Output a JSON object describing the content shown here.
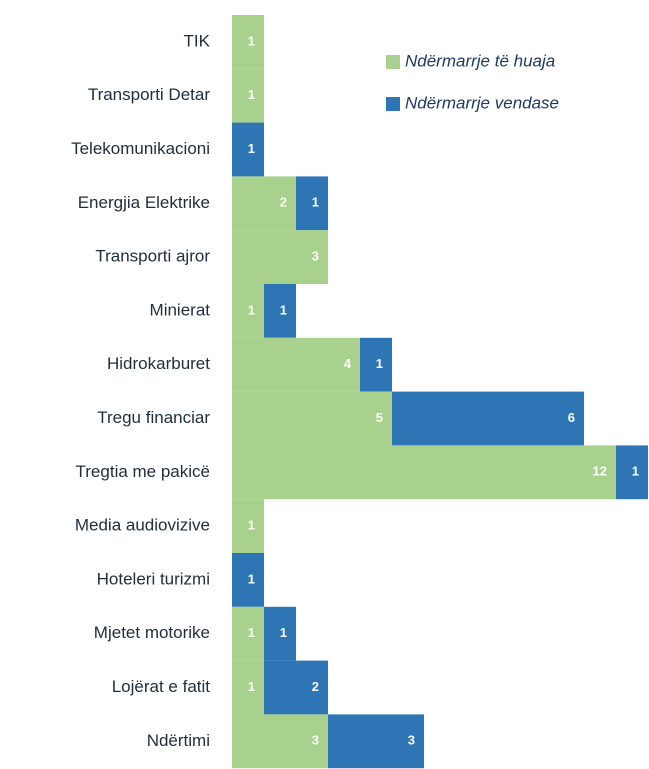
{
  "chart_data": {
    "type": "stacked-barh",
    "categories": [
      "TIK",
      "Transporti Detar",
      "Telekomunikacioni",
      "Energjia Elektrike",
      "Transporti ajror",
      "Minierat",
      "Hidrokarburet",
      "Tregu financiar",
      "Tregtia me pakicë",
      "Media audiovizive",
      "Hoteleri turizmi",
      "Mjetet motorike",
      "Lojërat e fatit",
      "Ndërtimi"
    ],
    "series": [
      {
        "name": "Ndërmarrje të huaja",
        "color": "#a9d18e",
        "values": [
          1,
          1,
          null,
          2,
          3,
          1,
          4,
          5,
          12,
          1,
          null,
          1,
          1,
          3
        ]
      },
      {
        "name": "Ndërmarrje vendase",
        "color": "#2e75b6",
        "values": [
          null,
          null,
          1,
          1,
          null,
          1,
          1,
          6,
          1,
          null,
          1,
          1,
          2,
          3
        ]
      }
    ],
    "xlim": [
      0,
      13
    ],
    "legend": "top-right"
  }
}
